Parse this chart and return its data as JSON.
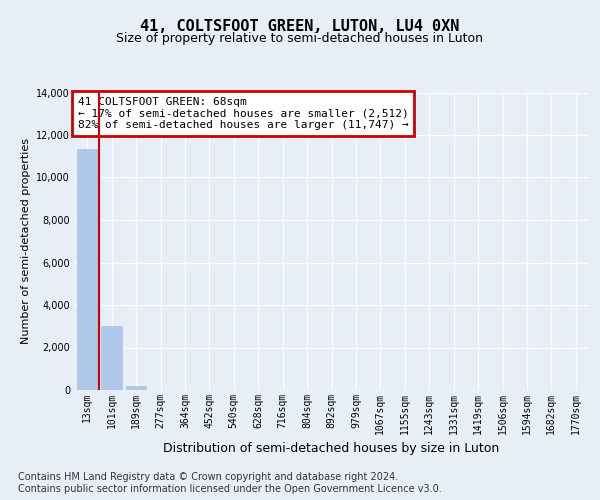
{
  "title": "41, COLTSFOOT GREEN, LUTON, LU4 0XN",
  "subtitle": "Size of property relative to semi-detached houses in Luton",
  "xlabel": "Distribution of semi-detached houses by size in Luton",
  "ylabel": "Number of semi-detached properties",
  "categories": [
    "13sqm",
    "101sqm",
    "189sqm",
    "277sqm",
    "364sqm",
    "452sqm",
    "540sqm",
    "628sqm",
    "716sqm",
    "804sqm",
    "892sqm",
    "979sqm",
    "1067sqm",
    "1155sqm",
    "1243sqm",
    "1331sqm",
    "1419sqm",
    "1506sqm",
    "1594sqm",
    "1682sqm",
    "1770sqm"
  ],
  "values": [
    11350,
    3030,
    200,
    0,
    0,
    0,
    0,
    0,
    0,
    0,
    0,
    0,
    0,
    0,
    0,
    0,
    0,
    0,
    0,
    0,
    0
  ],
  "bar_color": "#aec6e8",
  "subject_bar_index": 1,
  "highlight_color": "#cc0000",
  "ylim": [
    0,
    14000
  ],
  "yticks": [
    0,
    2000,
    4000,
    6000,
    8000,
    10000,
    12000,
    14000
  ],
  "annotation_title": "41 COLTSFOOT GREEN: 68sqm",
  "annotation_line1": "← 17% of semi-detached houses are smaller (2,512)",
  "annotation_line2": "82% of semi-detached houses are larger (11,747) →",
  "annotation_box_color": "#cc0000",
  "footer_line1": "Contains HM Land Registry data © Crown copyright and database right 2024.",
  "footer_line2": "Contains public sector information licensed under the Open Government Licence v3.0.",
  "bg_color": "#e8eef7",
  "plot_bg_color": "#e8eef7",
  "grid_color": "#ffffff",
  "title_fontsize": 11,
  "subtitle_fontsize": 9,
  "ylabel_fontsize": 8,
  "xlabel_fontsize": 9,
  "tick_fontsize": 7,
  "footer_fontsize": 7,
  "annotation_fontsize": 8
}
